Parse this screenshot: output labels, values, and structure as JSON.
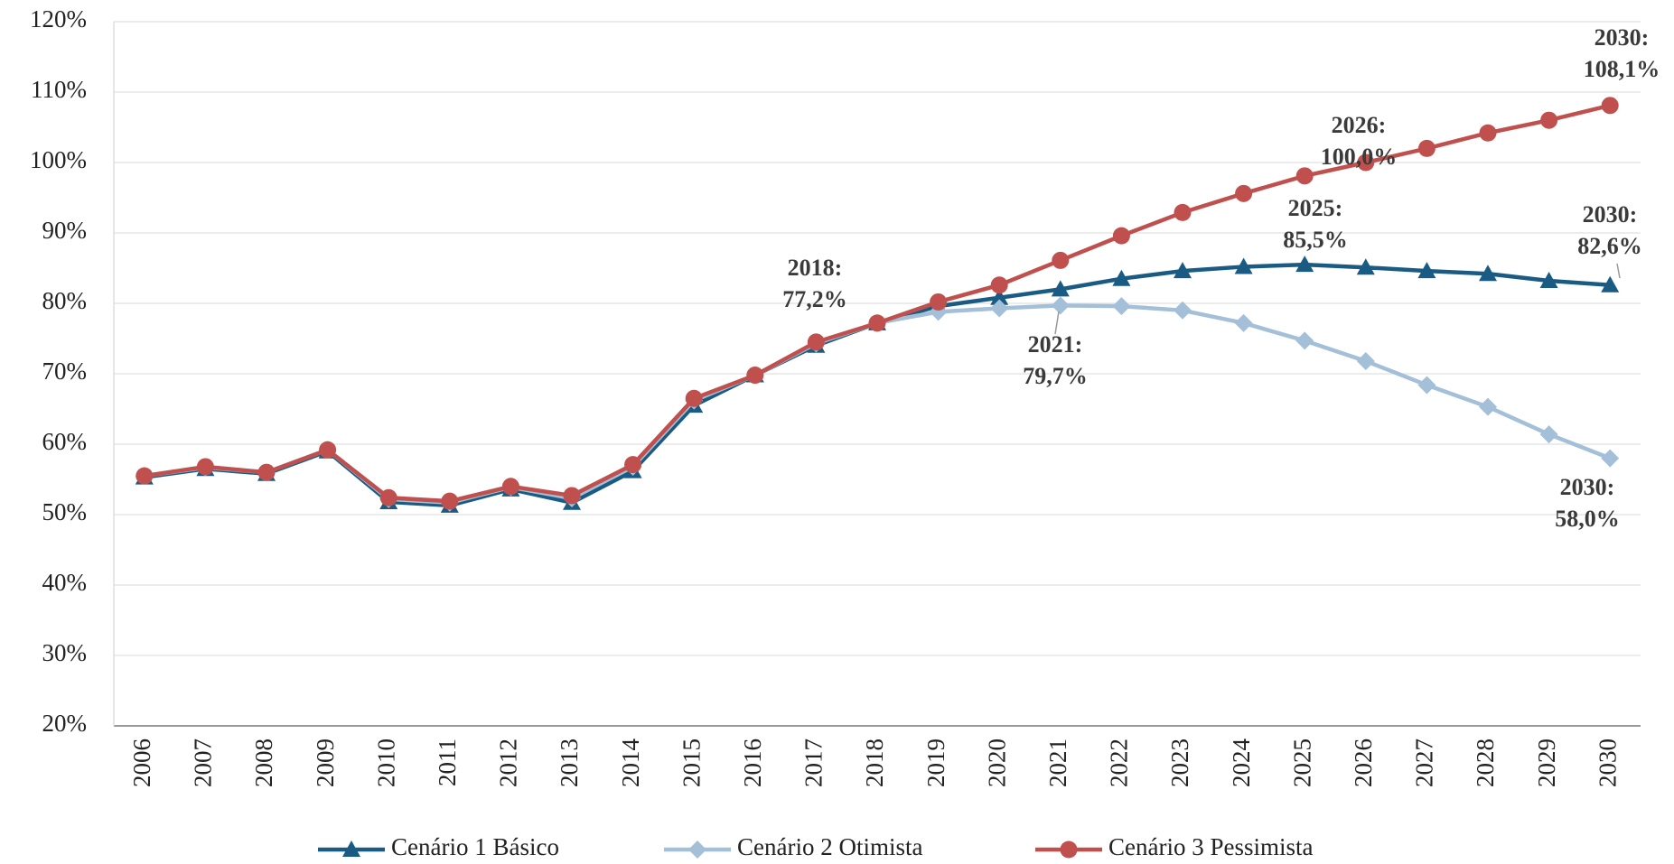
{
  "chart_data": {
    "type": "line",
    "categories": [
      "2006",
      "2007",
      "2008",
      "2009",
      "2010",
      "2011",
      "2012",
      "2013",
      "2014",
      "2015",
      "2016",
      "2017",
      "2018",
      "2019",
      "2020",
      "2021",
      "2022",
      "2023",
      "2024",
      "2025",
      "2026",
      "2027",
      "2028",
      "2029",
      "2030"
    ],
    "series": [
      {
        "name": "Cenário 1 Básico",
        "color": "#1a5b84",
        "marker": "triangle",
        "values": [
          55.3,
          56.5,
          55.8,
          59.0,
          51.8,
          51.3,
          53.6,
          51.7,
          56.2,
          65.5,
          69.8,
          74.0,
          77.2,
          79.6,
          80.8,
          82.0,
          83.5,
          84.6,
          85.2,
          85.5,
          85.1,
          84.6,
          84.2,
          83.2,
          82.6
        ]
      },
      {
        "name": "Cenário 2 Otimista",
        "color": "#a4bfd8",
        "marker": "diamond",
        "values": [
          55.5,
          56.7,
          56.0,
          59.2,
          52.2,
          51.7,
          53.9,
          52.3,
          56.8,
          66.2,
          69.8,
          74.3,
          77.2,
          78.8,
          79.3,
          79.7,
          79.6,
          79.0,
          77.2,
          74.7,
          71.8,
          68.4,
          65.3,
          61.4,
          58.0
        ]
      },
      {
        "name": "Cenário 3 Pessimista",
        "color": "#c0504d",
        "marker": "circle",
        "values": [
          55.5,
          56.8,
          56.0,
          59.2,
          52.4,
          51.9,
          54.0,
          52.7,
          57.1,
          66.5,
          69.8,
          74.5,
          77.2,
          80.2,
          82.6,
          86.1,
          89.6,
          92.9,
          95.6,
          98.1,
          100.0,
          102.0,
          104.2,
          106.0,
          108.1
        ]
      }
    ],
    "ylim": [
      20,
      120
    ],
    "yticks": [
      {
        "value": 20,
        "label": "20%"
      },
      {
        "value": 30,
        "label": "30%"
      },
      {
        "value": 40,
        "label": "40%"
      },
      {
        "value": 50,
        "label": "50%"
      },
      {
        "value": 60,
        "label": "60%"
      },
      {
        "value": 70,
        "label": "70%"
      },
      {
        "value": 80,
        "label": "80%"
      },
      {
        "value": 90,
        "label": "90%"
      },
      {
        "value": 100,
        "label": "100%"
      },
      {
        "value": 110,
        "label": "110%"
      },
      {
        "value": 120,
        "label": "120%"
      }
    ],
    "grid": true,
    "annotations": [
      [
        "2018:",
        "77,2%"
      ],
      [
        "2021:",
        "79,7%"
      ],
      [
        "2025:",
        "85,5%"
      ],
      [
        "2026:",
        "100,0%"
      ],
      [
        "2030:",
        "108,1%"
      ],
      [
        "2030:",
        "82,6%"
      ],
      [
        "2030:",
        "58,0%"
      ]
    ]
  }
}
